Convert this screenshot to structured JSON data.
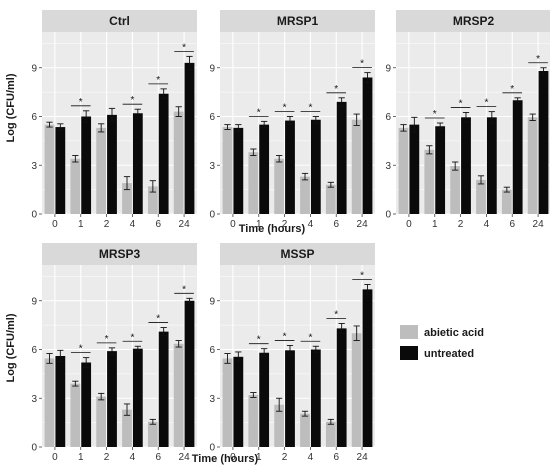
{
  "chart_data": {
    "type": "bar",
    "ylabel": "Log (CFU/ml)",
    "xlabel": "Time (hours)",
    "categories": [
      "0",
      "1",
      "2",
      "4",
      "6",
      "24"
    ],
    "yticks": [
      "0",
      "3",
      "6",
      "9"
    ],
    "ylim": [
      0,
      11.2
    ],
    "legend": {
      "placement": "right",
      "entries": [
        "abietic acid",
        "untreated"
      ]
    },
    "colors": {
      "abietic acid": "#bdbdbd",
      "untreated": "#0a0a0a",
      "panel_bg": "#ebebeb",
      "strip_bg": "#d9d9d9",
      "grid": "#ffffff"
    },
    "significance_marker": "*",
    "panels": [
      {
        "name": "Ctrl",
        "series": [
          {
            "name": "abietic acid",
            "values": [
              5.5,
              3.4,
              5.3,
              1.9,
              1.7,
              6.3
            ],
            "errors": [
              0.15,
              0.2,
              0.25,
              0.4,
              0.35,
              0.3
            ]
          },
          {
            "name": "untreated",
            "values": [
              5.35,
              6.0,
              6.1,
              6.2,
              7.4,
              9.3
            ],
            "errors": [
              0.2,
              0.35,
              0.4,
              0.25,
              0.3,
              0.4
            ]
          }
        ],
        "significant": [
          false,
          true,
          false,
          true,
          true,
          true
        ]
      },
      {
        "name": "MRSP1",
        "series": [
          {
            "name": "abietic acid",
            "values": [
              5.35,
              3.8,
              3.4,
              2.3,
              1.8,
              5.8
            ],
            "errors": [
              0.15,
              0.2,
              0.2,
              0.2,
              0.15,
              0.35
            ]
          },
          {
            "name": "untreated",
            "values": [
              5.3,
              5.5,
              5.75,
              5.8,
              6.9,
              8.4
            ],
            "errors": [
              0.2,
              0.2,
              0.25,
              0.2,
              0.25,
              0.3
            ]
          }
        ],
        "significant": [
          false,
          true,
          true,
          true,
          true,
          true
        ]
      },
      {
        "name": "MRSP2",
        "series": [
          {
            "name": "abietic acid",
            "values": [
              5.3,
              3.95,
              2.95,
              2.1,
              1.5,
              5.95
            ],
            "errors": [
              0.2,
              0.25,
              0.25,
              0.25,
              0.15,
              0.2
            ]
          },
          {
            "name": "untreated",
            "values": [
              5.5,
              5.4,
              5.95,
              5.95,
              7.0,
              8.8
            ],
            "errors": [
              0.45,
              0.2,
              0.3,
              0.35,
              0.15,
              0.2
            ]
          }
        ],
        "significant": [
          false,
          true,
          true,
          true,
          true,
          true
        ]
      },
      {
        "name": "MRSP3",
        "series": [
          {
            "name": "abietic acid",
            "values": [
              5.45,
              3.9,
              3.1,
              2.3,
              1.55,
              6.35
            ],
            "errors": [
              0.3,
              0.15,
              0.2,
              0.35,
              0.15,
              0.2
            ]
          },
          {
            "name": "untreated",
            "values": [
              5.6,
              5.2,
              5.9,
              6.05,
              7.1,
              9.0
            ],
            "errors": [
              0.35,
              0.3,
              0.2,
              0.15,
              0.25,
              0.15
            ]
          }
        ],
        "significant": [
          false,
          true,
          true,
          true,
          true,
          true
        ]
      },
      {
        "name": "MSSP",
        "series": [
          {
            "name": "abietic acid",
            "values": [
              5.45,
              3.2,
              2.6,
              2.05,
              1.55,
              7.0
            ],
            "errors": [
              0.3,
              0.15,
              0.4,
              0.15,
              0.15,
              0.45
            ]
          },
          {
            "name": "untreated",
            "values": [
              5.55,
              5.8,
              5.95,
              6.0,
              7.3,
              9.7
            ],
            "errors": [
              0.3,
              0.25,
              0.3,
              0.2,
              0.3,
              0.3
            ]
          }
        ],
        "significant": [
          false,
          true,
          true,
          true,
          true,
          true
        ]
      }
    ]
  }
}
